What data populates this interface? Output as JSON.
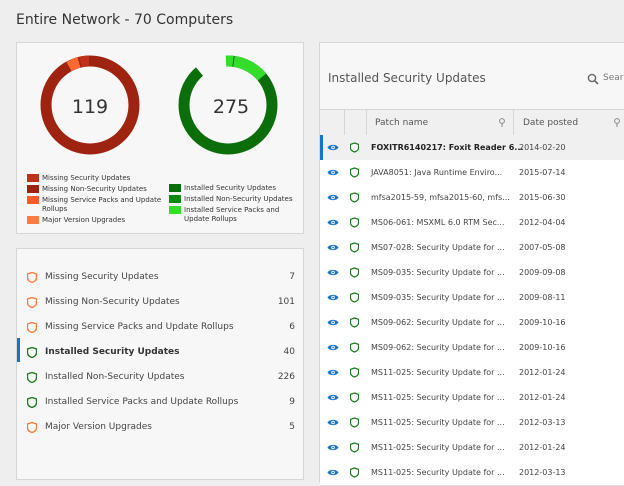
{
  "header": {
    "title": "Entire Network - 70 Computers"
  },
  "colors": {
    "missing_ring": "#9e2310",
    "missing_accent": "#ff6a33",
    "installed_ring": "#0b6e0b",
    "installed_accent": "#33dd2a",
    "shield_missing": "#ff7a3d",
    "shield_installed": "#1d7a1d",
    "selection": "#1a73c4",
    "eye": "#1a73c4"
  },
  "donuts": {
    "missing": {
      "value": "119"
    },
    "installed": {
      "value": "275"
    }
  },
  "legend": {
    "missing": [
      {
        "label": "Missing Security Updates",
        "color": "#c0311a"
      },
      {
        "label": "Missing Non-Security Updates",
        "color": "#9e2310"
      },
      {
        "label": "Missing Service Packs and Update Rollups",
        "color": "#ff5a2a"
      },
      {
        "label": "Major Version Upgrades",
        "color": "#ff7a3d"
      }
    ],
    "installed": [
      {
        "label": "Installed Security Updates",
        "color": "#0b6e0b"
      },
      {
        "label": "Installed Non-Security Updates",
        "color": "#0e8a0e"
      },
      {
        "label": "Installed Service Packs and Update Rollups",
        "color": "#33dd2a"
      }
    ]
  },
  "categories": [
    {
      "label": "Missing Security Updates",
      "count": "7",
      "type": "missing"
    },
    {
      "label": "Missing Non-Security Updates",
      "count": "101",
      "type": "missing"
    },
    {
      "label": "Missing Service Packs and Update Rollups",
      "count": "6",
      "type": "missing"
    },
    {
      "label": "Installed Security Updates",
      "count": "40",
      "type": "installed",
      "active": true
    },
    {
      "label": "Installed Non-Security Updates",
      "count": "226",
      "type": "installed"
    },
    {
      "label": "Installed Service Packs and Update Rollups",
      "count": "9",
      "type": "installed"
    },
    {
      "label": "Major Version Upgrades",
      "count": "5",
      "type": "missing"
    }
  ],
  "table": {
    "title": "Installed Security Updates",
    "search_label": "Sear",
    "columns": {
      "patch": "Patch name",
      "date": "Date posted"
    },
    "rows": [
      {
        "patch": "FOXITR6140217: Foxit Reader 6...",
        "date": "2014-02-20",
        "selected": true
      },
      {
        "patch": "JAVA8051: Java Runtime Enviro...",
        "date": "2015-07-14"
      },
      {
        "patch": "mfsa2015-59, mfsa2015-60, mfs...",
        "date": "2015-06-30"
      },
      {
        "patch": "MS06-061: MSXML 6.0 RTM Sec...",
        "date": "2012-04-04"
      },
      {
        "patch": "MS07-028: Security Update for ...",
        "date": "2007-05-08"
      },
      {
        "patch": "MS09-035: Security Update for ...",
        "date": "2009-09-08"
      },
      {
        "patch": "MS09-035: Security Update for ...",
        "date": "2009-08-11"
      },
      {
        "patch": "MS09-062: Security Update for ...",
        "date": "2009-10-16"
      },
      {
        "patch": "MS09-062: Security Update for ...",
        "date": "2009-10-16"
      },
      {
        "patch": "MS11-025: Security Update for ...",
        "date": "2012-01-24"
      },
      {
        "patch": "MS11-025: Security Update for ...",
        "date": "2012-01-24"
      },
      {
        "patch": "MS11-025: Security Update for ...",
        "date": "2012-03-13"
      },
      {
        "patch": "MS11-025: Security Update for ...",
        "date": "2012-01-24"
      },
      {
        "patch": "MS11-025: Security Update for ...",
        "date": "2012-03-13"
      }
    ]
  }
}
